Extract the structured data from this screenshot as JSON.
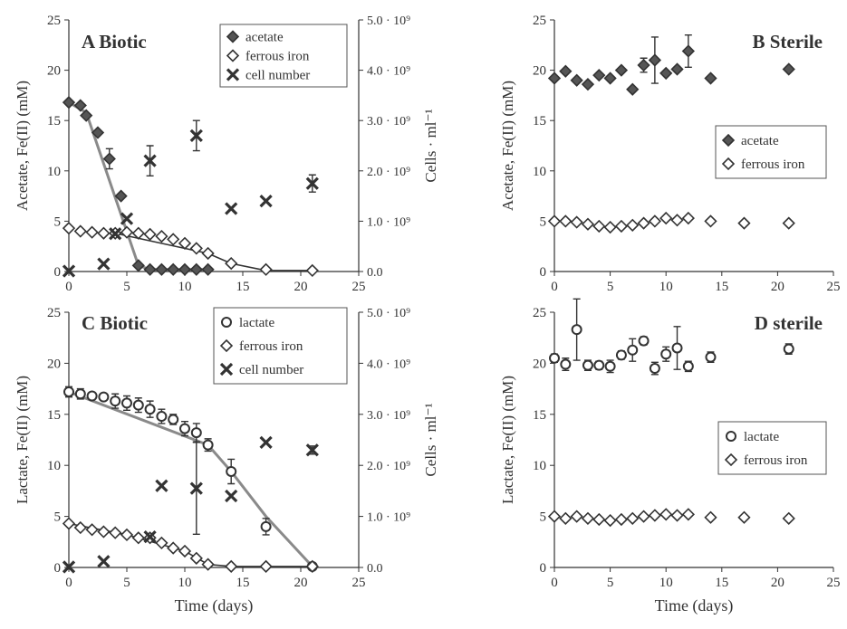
{
  "colors": {
    "axis": "#333333",
    "marker_dark": "#555555",
    "marker_light": "#ffffff",
    "fit_line": "#8a8a8a",
    "fe_line": "#333333"
  },
  "chart_data": [
    {
      "type": "scatter",
      "panel": "A",
      "title": "A Biotic",
      "xlabel": "",
      "ylabel": "Acetate, Fe(II) (mM)",
      "y2label": "Cells · ml⁻¹",
      "xlim": [
        0,
        25
      ],
      "ylim": [
        0,
        25
      ],
      "y2lim": [
        0,
        5000000000
      ],
      "x_ticks": [
        "0",
        "5",
        "10",
        "15",
        "20",
        "25"
      ],
      "y_ticks": [
        "0",
        "5",
        "10",
        "15",
        "20",
        "25"
      ],
      "y2_ticks": [
        "0.0",
        "1.0 · 10⁹",
        "2.0 · 10⁹",
        "3.0 · 10⁹",
        "4.0 · 10⁹",
        "5.0 · 10⁹"
      ],
      "legend": {
        "position": "top-right",
        "entries": [
          "acetate",
          "ferrous iron",
          "cell number"
        ]
      },
      "series": [
        {
          "name": "acetate",
          "marker": "diamond-filled",
          "x": [
            0,
            1,
            1.5,
            2.5,
            3.5,
            4.5,
            6,
            7,
            8,
            9,
            10,
            11,
            12
          ],
          "y": [
            16.8,
            16.5,
            15.5,
            13.8,
            11.2,
            7.5,
            0.6,
            0.2,
            0.2,
            0.2,
            0.2,
            0.2,
            0.2
          ],
          "err": [
            0,
            0,
            0,
            0,
            1,
            0,
            0,
            0,
            0,
            0,
            0,
            0,
            0
          ]
        },
        {
          "name": "ferrous iron",
          "marker": "diamond-open",
          "x": [
            0,
            1,
            2,
            3,
            4,
            5,
            6,
            7,
            8,
            9,
            10,
            11,
            12,
            14,
            17,
            21
          ],
          "y": [
            4.3,
            4.0,
            3.9,
            3.8,
            3.8,
            3.9,
            3.8,
            3.7,
            3.5,
            3.2,
            2.8,
            2.3,
            1.8,
            0.8,
            0.2,
            0.1
          ]
        },
        {
          "name": "cell number",
          "marker": "cross",
          "axis": "right",
          "x": [
            0,
            3,
            4,
            5,
            7,
            11,
            14,
            17,
            21
          ],
          "y": [
            10000000,
            150000000,
            750000000,
            1050000000,
            2200000000,
            2700000000,
            1250000000,
            1400000000,
            1750000000
          ],
          "err": [
            0,
            0,
            0,
            0,
            300000000,
            300000000,
            0,
            0,
            170000000
          ]
        }
      ],
      "fit_lines": [
        {
          "x": [
            0,
            1.5,
            6,
            7,
            12
          ],
          "y": [
            16.8,
            15.8,
            0.6,
            0.2,
            0.2
          ]
        },
        {
          "x": [
            4,
            12,
            14,
            17,
            21
          ],
          "y": [
            3.8,
            1.8,
            0.8,
            0.1,
            0.1
          ],
          "style": "dark"
        }
      ]
    },
    {
      "type": "scatter",
      "panel": "B",
      "title": "B Sterile",
      "xlabel": "",
      "ylabel": "Acetate, Fe(II) (mM)",
      "xlim": [
        0,
        25
      ],
      "ylim": [
        0,
        25
      ],
      "x_ticks": [
        "0",
        "5",
        "10",
        "15",
        "20",
        "25"
      ],
      "y_ticks": [
        "0",
        "5",
        "10",
        "15",
        "20",
        "25"
      ],
      "legend": {
        "position": "right",
        "entries": [
          "acetate",
          "ferrous iron"
        ]
      },
      "series": [
        {
          "name": "acetate",
          "marker": "diamond-filled",
          "x": [
            0,
            1,
            2,
            3,
            4,
            5,
            6,
            7,
            8,
            9,
            10,
            11,
            12,
            14,
            21
          ],
          "y": [
            19.2,
            19.9,
            19.0,
            18.6,
            19.5,
            19.2,
            20.0,
            18.1,
            20.5,
            21.0,
            19.7,
            20.1,
            21.9,
            19.2,
            20.1
          ],
          "err": [
            0,
            0,
            0,
            0,
            0,
            0,
            0,
            0,
            0.7,
            2.3,
            0,
            0,
            1.6,
            0,
            0
          ]
        },
        {
          "name": "ferrous iron",
          "marker": "diamond-open",
          "x": [
            0,
            1,
            2,
            3,
            4,
            5,
            6,
            7,
            8,
            9,
            10,
            11,
            12,
            14,
            17,
            21
          ],
          "y": [
            5.0,
            5.0,
            4.9,
            4.7,
            4.5,
            4.4,
            4.5,
            4.6,
            4.8,
            5.0,
            5.3,
            5.1,
            5.3,
            5.0,
            4.8,
            4.8
          ]
        }
      ]
    },
    {
      "type": "scatter",
      "panel": "C",
      "title": "C Biotic",
      "xlabel": "Time (days)",
      "ylabel": "Lactate, Fe(II) (mM)",
      "y2label": "Cells · ml⁻¹",
      "xlim": [
        0,
        25
      ],
      "ylim": [
        0,
        25
      ],
      "y2lim": [
        0,
        5000000000
      ],
      "x_ticks": [
        "0",
        "5",
        "10",
        "15",
        "20",
        "25"
      ],
      "y_ticks": [
        "0",
        "5",
        "10",
        "15",
        "20",
        "25"
      ],
      "y2_ticks": [
        "0.0",
        "1.0 · 10⁹",
        "2.0 · 10⁹",
        "3.0 · 10⁹",
        "4.0 · 10⁹",
        "5.0 · 10⁹"
      ],
      "legend": {
        "position": "top-right",
        "entries": [
          "lactate",
          "ferrous iron",
          "cell number"
        ]
      },
      "series": [
        {
          "name": "lactate",
          "marker": "circle-open",
          "x": [
            0,
            1,
            2,
            3,
            4,
            5,
            6,
            7,
            8,
            9,
            10,
            11,
            12,
            14,
            17,
            21
          ],
          "y": [
            17.2,
            17.0,
            16.8,
            16.7,
            16.3,
            16.1,
            15.9,
            15.5,
            14.8,
            14.5,
            13.6,
            13.2,
            12.0,
            9.4,
            4.0,
            0.1
          ],
          "err": [
            0.5,
            0.5,
            0.3,
            0.3,
            0.7,
            0.7,
            0.7,
            0.8,
            0.7,
            0.5,
            0.7,
            0.9,
            0.6,
            1.2,
            0.8,
            0
          ]
        },
        {
          "name": "ferrous iron",
          "marker": "diamond-open",
          "x": [
            0,
            1,
            2,
            3,
            4,
            5,
            6,
            7,
            8,
            9,
            10,
            11,
            12,
            14,
            17,
            21
          ],
          "y": [
            4.3,
            3.9,
            3.7,
            3.5,
            3.4,
            3.2,
            2.9,
            2.9,
            2.4,
            1.9,
            1.6,
            0.9,
            0.3,
            0.1,
            0.1,
            0.1
          ]
        },
        {
          "name": "cell number",
          "marker": "cross",
          "axis": "right",
          "x": [
            0,
            3,
            7,
            8,
            11,
            14,
            17,
            21
          ],
          "y": [
            10000000,
            120000000,
            600000000,
            1600000000,
            1550000000,
            1400000000,
            2450000000,
            2300000000
          ],
          "err": [
            0,
            0,
            0,
            0,
            900000000,
            0,
            0,
            80000000
          ]
        }
      ],
      "fit_lines": [
        {
          "x": [
            0,
            12,
            14,
            17,
            21
          ],
          "y": [
            17.2,
            12.0,
            9.4,
            5.0,
            0.1
          ]
        },
        {
          "x": [
            0,
            5,
            10,
            12,
            14,
            21
          ],
          "y": [
            4.3,
            3.2,
            1.6,
            0.3,
            0.1,
            0.1
          ],
          "style": "dark"
        }
      ]
    },
    {
      "type": "scatter",
      "panel": "D",
      "title": "D sterile",
      "xlabel": "Time (days)",
      "ylabel": "Lactate, Fe(II) (mM)",
      "xlim": [
        0,
        25
      ],
      "ylim": [
        0,
        25
      ],
      "x_ticks": [
        "0",
        "5",
        "10",
        "15",
        "20",
        "25"
      ],
      "y_ticks": [
        "0",
        "5",
        "10",
        "15",
        "20",
        "25"
      ],
      "legend": {
        "position": "right",
        "entries": [
          "lactate",
          "ferrous iron"
        ]
      },
      "series": [
        {
          "name": "lactate",
          "marker": "circle-open",
          "x": [
            0,
            1,
            2,
            3,
            4,
            5,
            6,
            7,
            8,
            9,
            10,
            11,
            12,
            14,
            21
          ],
          "y": [
            20.5,
            19.9,
            23.3,
            19.8,
            19.8,
            19.7,
            20.8,
            21.3,
            22.2,
            19.5,
            20.9,
            21.5,
            19.7,
            20.6,
            21.4
          ],
          "err": [
            0.4,
            0.6,
            3.0,
            0.5,
            0.4,
            0.6,
            0.4,
            1.1,
            0.4,
            0.6,
            0.7,
            2.1,
            0.5,
            0.5,
            0.5
          ]
        },
        {
          "name": "ferrous iron",
          "marker": "diamond-open",
          "x": [
            0,
            1,
            2,
            3,
            4,
            5,
            6,
            7,
            8,
            9,
            10,
            11,
            12,
            14,
            17,
            21
          ],
          "y": [
            5.0,
            4.8,
            5.0,
            4.8,
            4.7,
            4.6,
            4.7,
            4.8,
            5.0,
            5.1,
            5.2,
            5.1,
            5.2,
            4.9,
            4.9,
            4.8
          ]
        }
      ]
    }
  ]
}
